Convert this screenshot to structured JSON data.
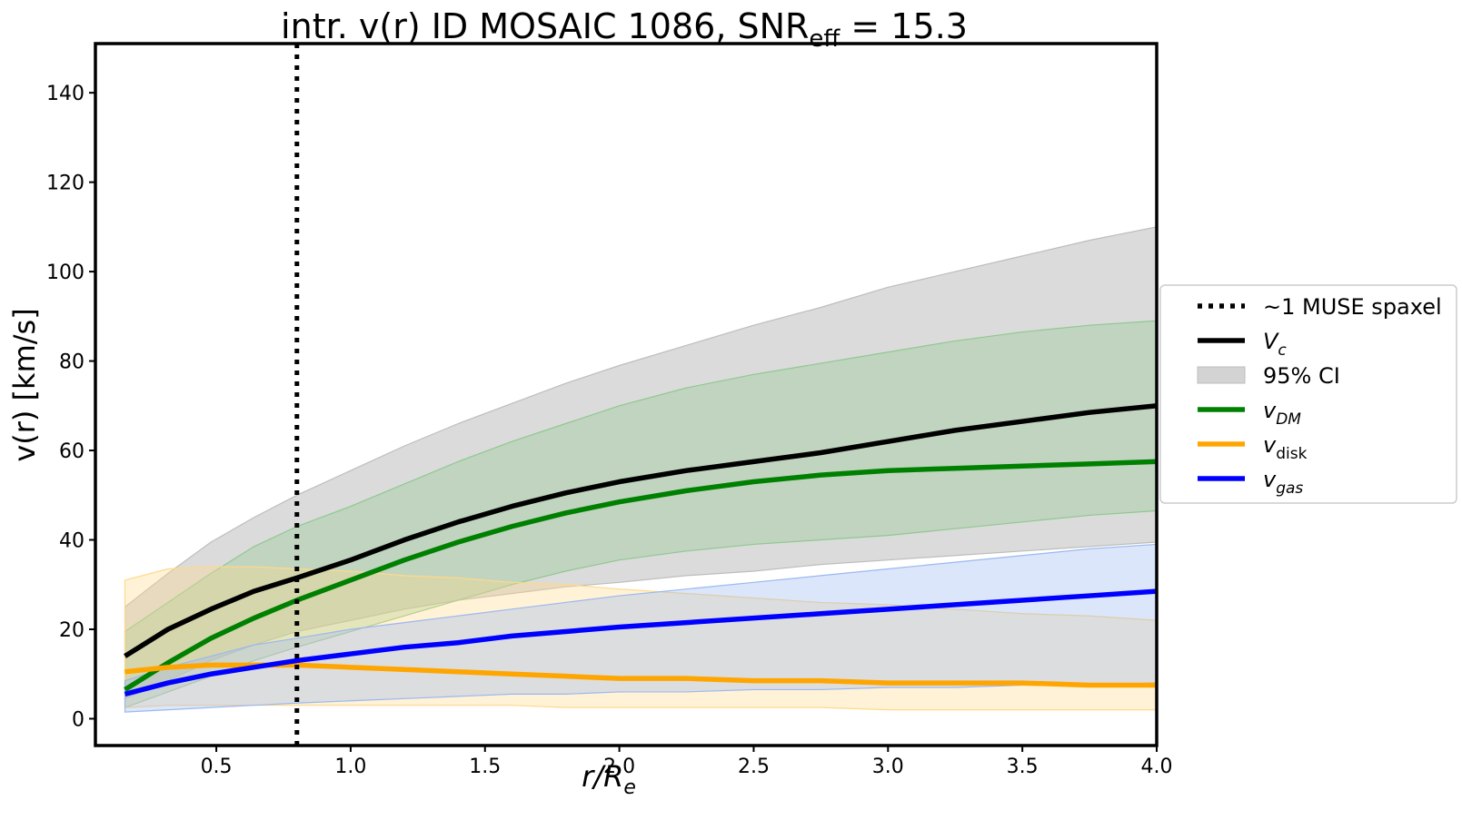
{
  "chart_data": {
    "type": "line",
    "title": "intr. v(r) ID MOSAIC 1086, SNR",
    "title_subscript": "eff",
    "title_suffix": " = 15.3",
    "xlabel": "r/R",
    "xlabel_subscript": "e",
    "ylabel": "v(r) [km/s]",
    "xlim": [
      0.05,
      4.0
    ],
    "ylim": [
      -6,
      151
    ],
    "xticks": [
      0.5,
      1.0,
      1.5,
      2.0,
      2.5,
      3.0,
      3.5,
      4.0
    ],
    "xtick_labels": [
      "0.5",
      "1.0",
      "1.5",
      "2.0",
      "2.5",
      "3.0",
      "3.5",
      "4.0"
    ],
    "yticks": [
      0,
      20,
      40,
      60,
      80,
      100,
      120,
      140
    ],
    "ytick_labels": [
      "0",
      "20",
      "40",
      "60",
      "80",
      "100",
      "120",
      "140"
    ],
    "spaxel_line_x": 0.8,
    "x": [
      0.16,
      0.32,
      0.48,
      0.64,
      0.8,
      1.0,
      1.2,
      1.4,
      1.6,
      1.8,
      2.0,
      2.25,
      2.5,
      2.75,
      3.0,
      3.25,
      3.5,
      3.75,
      4.0
    ],
    "series": [
      {
        "name": "V",
        "subscript": "c",
        "color": "#000000",
        "values": [
          14,
          20,
          24.5,
          28.5,
          31.5,
          35.5,
          40,
          44,
          47.5,
          50.5,
          53,
          55.5,
          57.5,
          59.5,
          62,
          64.5,
          66.5,
          68.5,
          70
        ],
        "ci_low": [
          4.5,
          8.5,
          13,
          16.5,
          19.5,
          22,
          24.5,
          26.5,
          28,
          29.5,
          30.5,
          32,
          33,
          34.5,
          35.5,
          36.5,
          37.5,
          38.5,
          39.5
        ],
        "ci_high": [
          25,
          32.5,
          39.5,
          45,
          50,
          55.5,
          61,
          66,
          70.5,
          75,
          79,
          83.5,
          88,
          92,
          96.5,
          100,
          103.5,
          107,
          110
        ],
        "band_color": "#bdbdbd"
      },
      {
        "name": "v",
        "subscript": "DM",
        "color": "#008000",
        "values": [
          6.5,
          12.5,
          18,
          22.5,
          26.5,
          31,
          35.5,
          39.5,
          43,
          46,
          48.5,
          51,
          53,
          54.5,
          55.5,
          56,
          56.5,
          57,
          57.5
        ],
        "ci_low": [
          2.5,
          6,
          9.5,
          13,
          16,
          19.5,
          23,
          26.5,
          30,
          33,
          35.5,
          37.5,
          39,
          40,
          41,
          42.5,
          44,
          45.5,
          46.5
        ],
        "ci_high": [
          19.5,
          26,
          32.5,
          38.5,
          43,
          47.5,
          52.5,
          57.5,
          62,
          66,
          70,
          74,
          77,
          79.5,
          82,
          84.5,
          86.5,
          88,
          89
        ],
        "band_color": "#90c890"
      },
      {
        "name": "v",
        "subscript": "disk",
        "color": "#FFA500",
        "values": [
          10.5,
          11.5,
          12,
          12,
          12,
          11.5,
          11,
          10.5,
          10,
          9.5,
          9,
          9,
          8.5,
          8.5,
          8,
          8,
          8,
          7.5,
          7.5
        ],
        "ci_low": [
          2.5,
          3,
          3,
          3,
          3,
          3,
          3,
          3,
          3,
          2.5,
          2.5,
          2.5,
          2.5,
          2.5,
          2,
          2,
          2,
          2,
          2
        ],
        "ci_high": [
          31,
          33.5,
          34,
          34,
          33.5,
          33,
          32,
          31.5,
          30.5,
          30,
          29,
          28,
          27,
          26,
          25.5,
          24.5,
          23.5,
          23,
          22
        ],
        "band_color": "#ffd98a"
      },
      {
        "name": "v",
        "subscript": "gas",
        "color": "#0000FF",
        "values": [
          5.5,
          8,
          10,
          11.5,
          13,
          14.5,
          16,
          17,
          18.5,
          19.5,
          20.5,
          21.5,
          22.5,
          23.5,
          24.5,
          25.5,
          26.5,
          27.5,
          28.5
        ],
        "ci_low": [
          1.5,
          2,
          2.5,
          3,
          3.5,
          4,
          4.5,
          5,
          5.5,
          5.5,
          6,
          6,
          6.5,
          6.5,
          7,
          7,
          7.5,
          7.5,
          8
        ],
        "ci_high": [
          8.5,
          11.5,
          14,
          16.5,
          18,
          20,
          21.5,
          23,
          24.5,
          26,
          27.5,
          29,
          30.5,
          32,
          33.5,
          35,
          36.5,
          38,
          39
        ],
        "band_color": "#9ab8f0"
      }
    ],
    "legend": {
      "placement": "outside-right",
      "entries": [
        {
          "label": "~1 MUSE spaxel",
          "style": "dotted",
          "color": "#000000"
        },
        {
          "label": "V",
          "subscript": "c",
          "style": "line",
          "color": "#000000"
        },
        {
          "label": "95% CI",
          "style": "patch",
          "color": "#d3d3d3"
        },
        {
          "label": "v",
          "subscript": "DM",
          "style": "line",
          "color": "#008000"
        },
        {
          "label": "v",
          "subscript": "disk",
          "style": "line",
          "color": "#FFA500"
        },
        {
          "label": "v",
          "subscript": "gas",
          "style": "line",
          "color": "#0000FF"
        }
      ]
    }
  }
}
